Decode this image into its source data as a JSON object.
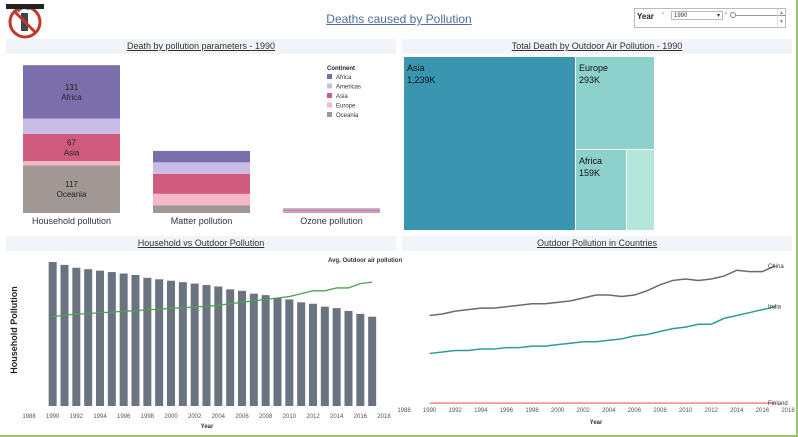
{
  "dashboard": {
    "title": "Deaths caused by Pollution",
    "logo_icon": "no-pollution-logo-icon",
    "year_filter": {
      "label": "Year",
      "value": "1990"
    }
  },
  "panels": {
    "bar": {
      "title": "Death by pollution parameters  - 1990"
    },
    "treemap": {
      "title": "Total Death by Outdoor Air Pollution - 1990"
    },
    "combo": {
      "title": "Household vs Outdoor Pollution"
    },
    "lines": {
      "title": "Outdoor Pollution in Countries"
    }
  },
  "colors": {
    "Africa": "#7b6fab",
    "Americas": "#c9bde6",
    "Asia": "#cf5c7e",
    "Europe": "#f6b7c8",
    "Oceania": "#a19896",
    "treemap_dark": "#3a95b1",
    "treemap_mid": "#8ed0cb",
    "treemap_light": "#b4e6dc",
    "household_bar": "#6b7280",
    "outdoor_line": "#4ea34a",
    "China": "#6b6b6b",
    "India": "#2f9d96",
    "Finland": "#ef8a7a"
  },
  "chart_data": [
    {
      "type": "bar",
      "title": "Death by pollution parameters  - 1990",
      "categories": [
        "Household pollution",
        "Matter pollution",
        "Ozone pollution"
      ],
      "legend": {
        "title": "Continent",
        "items": [
          "Africa",
          "Americas",
          "Asia",
          "Europe",
          "Oceania"
        ]
      },
      "stack_order_bottom_to_top": [
        "Oceania",
        "Europe",
        "Asia",
        "Americas",
        "Africa"
      ],
      "series": [
        {
          "name": "Oceania",
          "values": [
            117,
            19,
            2
          ]
        },
        {
          "name": "Europe",
          "values": [
            10,
            28,
            2
          ]
        },
        {
          "name": "Asia",
          "values": [
            67,
            49,
            3
          ]
        },
        {
          "name": "Americas",
          "values": [
            37,
            28,
            2
          ]
        },
        {
          "name": "Africa",
          "values": [
            131,
            28,
            2
          ]
        }
      ],
      "data_labels": [
        {
          "category": "Household pollution",
          "series": "Africa",
          "value": "131",
          "name": "Africa"
        },
        {
          "category": "Household pollution",
          "series": "Asia",
          "value": "67",
          "name": "Asia"
        },
        {
          "category": "Household pollution",
          "series": "Oceania",
          "value": "117",
          "name": "Oceania"
        }
      ]
    },
    {
      "type": "treemap",
      "title": "Total Death by Outdoor Air Pollution - 1990",
      "items": [
        {
          "name": "Asia",
          "label": "1,239K",
          "value": 1239
        },
        {
          "name": "Europe",
          "label": "293K",
          "value": 293
        },
        {
          "name": "Africa",
          "label": "159K",
          "value": 159
        },
        {
          "name": "",
          "label": "",
          "value": 110
        }
      ]
    },
    {
      "type": "bar",
      "title": "Household vs Outdoor Pollution",
      "ylabel": "Household Pollution",
      "xlabel": "Year",
      "x": [
        1990,
        1991,
        1992,
        1993,
        1994,
        1995,
        1996,
        1997,
        1998,
        1999,
        2000,
        2001,
        2002,
        2003,
        2004,
        2005,
        2006,
        2007,
        2008,
        2009,
        2010,
        2011,
        2012,
        2013,
        2014,
        2015,
        2016,
        2017
      ],
      "x_ticks": [
        "1988",
        "1990",
        "1992",
        "1994",
        "1996",
        "1998",
        "2000",
        "2002",
        "2004",
        "2006",
        "2008",
        "2010",
        "2012",
        "2014",
        "2016",
        "2018"
      ],
      "series": [
        {
          "name": "Household Pollution",
          "values": [
            100,
            98,
            96,
            95,
            94,
            93,
            92,
            91,
            89,
            88,
            87,
            86,
            85,
            84,
            83,
            81,
            80,
            78,
            77,
            75,
            74,
            72,
            71,
            69,
            68,
            66,
            64,
            62
          ]
        },
        {
          "name": "Avg. Outdoor air pollution",
          "values": [
            62,
            63,
            64,
            64,
            65,
            65,
            66,
            66,
            67,
            67,
            68,
            68,
            69,
            69,
            70,
            71,
            72,
            73,
            74,
            75,
            76,
            78,
            80,
            80,
            82,
            82,
            85,
            86
          ]
        }
      ]
    },
    {
      "type": "line",
      "title": "Outdoor Pollution in Countries",
      "xlabel": "Year",
      "x": [
        1990,
        1991,
        1992,
        1993,
        1994,
        1995,
        1996,
        1997,
        1998,
        1999,
        2000,
        2001,
        2002,
        2003,
        2004,
        2005,
        2006,
        2007,
        2008,
        2009,
        2010,
        2011,
        2012,
        2013,
        2014,
        2015,
        2016,
        2017
      ],
      "x_ticks": [
        "1988",
        "1990",
        "1992",
        "1994",
        "1996",
        "1998",
        "2000",
        "2002",
        "2004",
        "2006",
        "2008",
        "2010",
        "2012",
        "2014",
        "2016",
        "2018"
      ],
      "series": [
        {
          "name": "China",
          "values": [
            62,
            63,
            65,
            66,
            67,
            67,
            68,
            69,
            70,
            70,
            71,
            72,
            74,
            76,
            76,
            75,
            76,
            79,
            83,
            86,
            87,
            86,
            87,
            89,
            93,
            92,
            92,
            96
          ]
        },
        {
          "name": "India",
          "values": [
            36,
            37,
            38,
            38,
            39,
            39,
            40,
            40,
            41,
            41,
            42,
            43,
            44,
            44,
            45,
            46,
            48,
            49,
            51,
            53,
            54,
            56,
            56,
            60,
            62,
            64,
            66,
            68
          ]
        },
        {
          "name": "Finland",
          "values": [
            2,
            2,
            2,
            2,
            2,
            2,
            2,
            2,
            2,
            2,
            2,
            2,
            2,
            2,
            2,
            2,
            2,
            2,
            2,
            2,
            2,
            2,
            2,
            2,
            2,
            2,
            2,
            2
          ]
        }
      ]
    }
  ]
}
